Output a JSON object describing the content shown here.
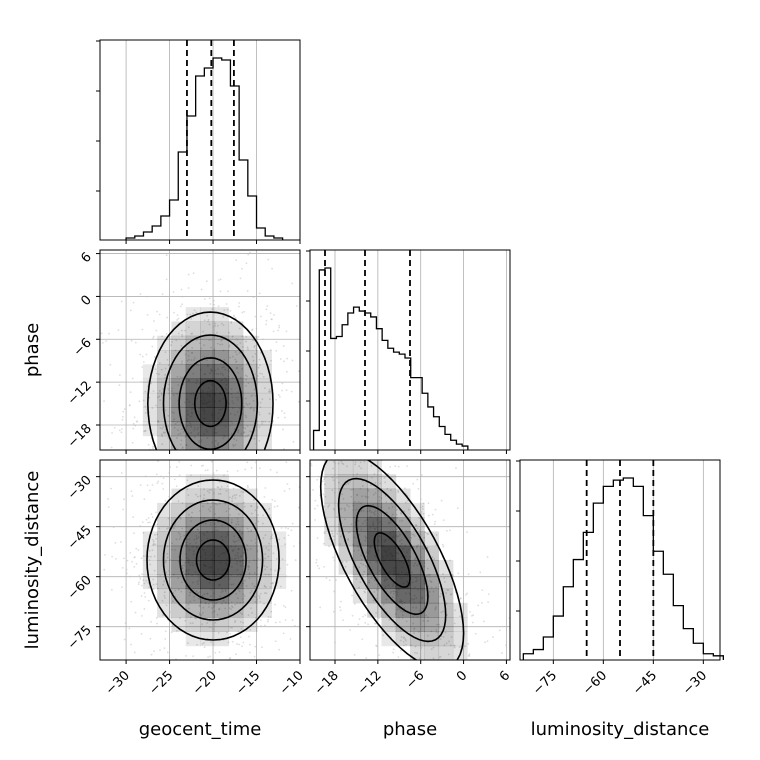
{
  "chart_data": {
    "type": "corner",
    "parameters": [
      {
        "name": "geocent_time",
        "label": "geocent_time",
        "range": [
          -33,
          -10
        ],
        "ticks": [
          -30,
          -25,
          -20,
          -15,
          -10
        ],
        "tick_labels": [
          "−30",
          "−25",
          "−20",
          "−15",
          "−10"
        ],
        "quantiles": [
          -23,
          -20.2,
          -17.6
        ]
      },
      {
        "name": "phase",
        "label": "phase",
        "range": [
          -21.5,
          6.5
        ],
        "ticks": [
          -18,
          -12,
          -6,
          0,
          6
        ],
        "tick_labels": [
          "−18",
          "−12",
          "−6",
          "0",
          "6"
        ],
        "quantiles": [
          -19.4,
          -13.8,
          -7.5
        ]
      },
      {
        "name": "luminosity_distance",
        "label": "luminosity_distance",
        "range": [
          -85,
          -25
        ],
        "ticks": [
          -75,
          -60,
          -45,
          -30
        ],
        "tick_labels": [
          "−75",
          "−60",
          "−45",
          "−30"
        ],
        "quantiles": [
          -65,
          -55,
          -45
        ]
      }
    ],
    "histograms": [
      {
        "parameter": "geocent_time",
        "bin_edges": [
          -30,
          -29,
          -28,
          -27,
          -26,
          -25,
          -24,
          -23,
          -22,
          -21,
          -20,
          -19,
          -18,
          -17,
          -16,
          -15,
          -14,
          -13,
          -12
        ],
        "counts": [
          0.01,
          0.02,
          0.04,
          0.07,
          0.12,
          0.2,
          0.44,
          0.62,
          0.82,
          0.86,
          0.91,
          0.9,
          0.77,
          0.4,
          0.22,
          0.06,
          0.02,
          0.01
        ]
      },
      {
        "parameter": "phase",
        "bin_edges": [
          -21,
          -20.2,
          -19.4,
          -18.6,
          -17.8,
          -17,
          -16.2,
          -15.4,
          -14.6,
          -13.8,
          -13,
          -12.2,
          -11.4,
          -10.6,
          -9.8,
          -9,
          -8.2,
          -7.4,
          -6.6,
          -5.8,
          -5,
          -4.2,
          -3.4,
          -2.6,
          -1.8,
          -1,
          -0.2,
          0.6
        ],
        "counts": [
          0.1,
          0.92,
          0.93,
          0.57,
          0.58,
          0.64,
          0.7,
          0.73,
          0.71,
          0.7,
          0.68,
          0.62,
          0.56,
          0.52,
          0.5,
          0.49,
          0.47,
          0.37,
          0.37,
          0.29,
          0.22,
          0.17,
          0.12,
          0.08,
          0.05,
          0.03,
          0.02
        ]
      },
      {
        "parameter": "luminosity_distance",
        "bin_edges": [
          -84,
          -81,
          -78,
          -75,
          -72,
          -69,
          -66,
          -63,
          -60,
          -57,
          -54,
          -51,
          -48,
          -45,
          -42,
          -39,
          -36,
          -33,
          -30,
          -27,
          -24
        ],
        "counts": [
          0.03,
          0.05,
          0.11,
          0.21,
          0.35,
          0.48,
          0.61,
          0.75,
          0.83,
          0.86,
          0.87,
          0.83,
          0.69,
          0.52,
          0.41,
          0.26,
          0.15,
          0.08,
          0.03,
          0.02
        ]
      }
    ],
    "contours_2d": [
      {
        "x": "geocent_time",
        "y": "phase",
        "center": [
          -20.3,
          -15
        ],
        "spread": [
          3.6,
          6.4
        ]
      },
      {
        "x": "geocent_time",
        "y": "luminosity_distance",
        "center": [
          -20,
          -55
        ],
        "spread": [
          3.8,
          12
        ]
      },
      {
        "x": "phase",
        "y": "luminosity_distance",
        "center": [
          -10,
          -55
        ],
        "spread": [
          5.0,
          12
        ],
        "slope": -2.2
      }
    ],
    "colors": {
      "lines": "#000000",
      "grid": "#b0b0b0",
      "points": "#bdbdbd",
      "density": "#000000"
    }
  }
}
